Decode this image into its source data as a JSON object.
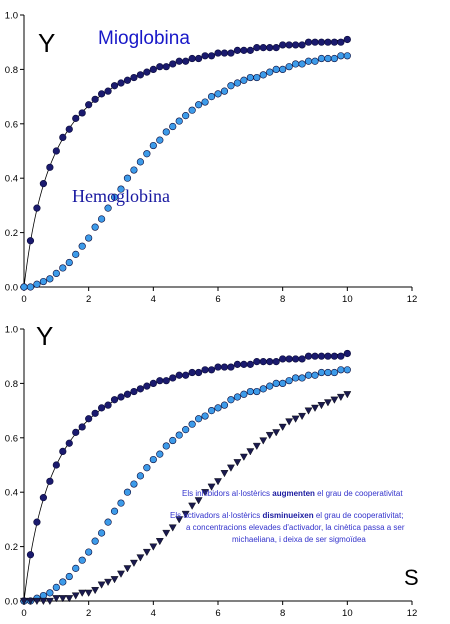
{
  "chart_data": [
    {
      "type": "scatter",
      "xlim": [
        0,
        12
      ],
      "ylim": [
        0,
        1.0
      ],
      "x_ticks": [
        "0",
        "2",
        "4",
        "6",
        "8",
        "10",
        "12"
      ],
      "y_ticks": [
        "0.0",
        "0.2",
        "0.4",
        "0.6",
        "0.8",
        "1.0"
      ],
      "ylabel": "Y",
      "xlabel": "",
      "grid": false,
      "x_step": 0.2,
      "x_max": 10,
      "series": [
        {
          "name": "Mioglobina",
          "marker": "circle",
          "color": "#1a1a6e",
          "fit_line": true,
          "model": {
            "p50": 1.0,
            "n": 1.0,
            "ymax": 1.0
          },
          "values": [
            0.0,
            0.17,
            0.29,
            0.38,
            0.44,
            0.5,
            0.55,
            0.58,
            0.62,
            0.64,
            0.67,
            0.69,
            0.71,
            0.72,
            0.74,
            0.75,
            0.76,
            0.77,
            0.78,
            0.79,
            0.8,
            0.81,
            0.81,
            0.82,
            0.83,
            0.83,
            0.84,
            0.84,
            0.85,
            0.85,
            0.86,
            0.86,
            0.86,
            0.87,
            0.87,
            0.87,
            0.88,
            0.88,
            0.88,
            0.88,
            0.89,
            0.89,
            0.89,
            0.89,
            0.9,
            0.9,
            0.9,
            0.9,
            0.9,
            0.9,
            0.91
          ]
        },
        {
          "name": "Hemoglobina",
          "marker": "circle",
          "color": "#3d9be9",
          "fit_line": false,
          "model": {
            "p50": 2.6,
            "n": 2.5,
            "ymax": 0.93
          },
          "values": [
            0.0,
            0.0,
            0.01,
            0.02,
            0.03,
            0.05,
            0.07,
            0.09,
            0.12,
            0.15,
            0.18,
            0.22,
            0.25,
            0.29,
            0.33,
            0.36,
            0.4,
            0.43,
            0.46,
            0.49,
            0.52,
            0.54,
            0.57,
            0.59,
            0.61,
            0.63,
            0.65,
            0.67,
            0.68,
            0.7,
            0.71,
            0.72,
            0.74,
            0.75,
            0.76,
            0.77,
            0.77,
            0.78,
            0.79,
            0.8,
            0.8,
            0.81,
            0.82,
            0.82,
            0.83,
            0.83,
            0.84,
            0.84,
            0.84,
            0.85,
            0.85
          ]
        }
      ],
      "annotations": {
        "ylabel": "Y",
        "mioglobina": "Mioglobina",
        "hemoglobina": "Hemoglobina"
      }
    },
    {
      "type": "scatter",
      "xlim": [
        0,
        12
      ],
      "ylim": [
        0,
        1.0
      ],
      "x_ticks": [
        "0",
        "2",
        "4",
        "6",
        "8",
        "10",
        "12"
      ],
      "y_ticks": [
        "0.0",
        "0.2",
        "0.4",
        "0.6",
        "0.8",
        "1.0"
      ],
      "ylabel": "Y",
      "xlabel": "S",
      "grid": false,
      "x_step": 0.2,
      "x_max": 10,
      "series": [
        {
          "name": "Mioglobina",
          "marker": "circle",
          "color": "#1a1a6e",
          "fit_line": true,
          "model": {
            "p50": 1.0,
            "n": 1.0,
            "ymax": 1.0
          },
          "values": [
            0.0,
            0.17,
            0.29,
            0.38,
            0.44,
            0.5,
            0.55,
            0.58,
            0.62,
            0.64,
            0.67,
            0.69,
            0.71,
            0.72,
            0.74,
            0.75,
            0.76,
            0.77,
            0.78,
            0.79,
            0.8,
            0.81,
            0.81,
            0.82,
            0.83,
            0.83,
            0.84,
            0.84,
            0.85,
            0.85,
            0.86,
            0.86,
            0.86,
            0.87,
            0.87,
            0.87,
            0.88,
            0.88,
            0.88,
            0.88,
            0.89,
            0.89,
            0.89,
            0.89,
            0.9,
            0.9,
            0.9,
            0.9,
            0.9,
            0.9,
            0.91
          ]
        },
        {
          "name": "Hemoglobina",
          "marker": "circle",
          "color": "#3d9be9",
          "fit_line": false,
          "model": {
            "p50": 2.6,
            "n": 2.5,
            "ymax": 0.93
          },
          "values": [
            0.0,
            0.0,
            0.01,
            0.02,
            0.03,
            0.05,
            0.07,
            0.09,
            0.12,
            0.15,
            0.18,
            0.22,
            0.25,
            0.29,
            0.33,
            0.36,
            0.4,
            0.43,
            0.46,
            0.49,
            0.52,
            0.54,
            0.57,
            0.59,
            0.61,
            0.63,
            0.65,
            0.67,
            0.68,
            0.7,
            0.71,
            0.72,
            0.74,
            0.75,
            0.76,
            0.77,
            0.77,
            0.78,
            0.79,
            0.8,
            0.8,
            0.81,
            0.82,
            0.82,
            0.83,
            0.83,
            0.84,
            0.84,
            0.84,
            0.85,
            0.85
          ]
        },
        {
          "name": "Inhibidor al·lostèric",
          "marker": "triangle-down",
          "color": "#1a1a4e",
          "fit_line": false,
          "model": {
            "p50": 4.9,
            "n": 2.8,
            "ymax": 0.95
          },
          "values": [
            0.0,
            0.0,
            0.0,
            0.0,
            0.0,
            0.01,
            0.01,
            0.01,
            0.02,
            0.03,
            0.03,
            0.04,
            0.06,
            0.07,
            0.08,
            0.1,
            0.12,
            0.14,
            0.16,
            0.18,
            0.2,
            0.22,
            0.25,
            0.27,
            0.3,
            0.32,
            0.35,
            0.37,
            0.4,
            0.42,
            0.44,
            0.47,
            0.49,
            0.51,
            0.53,
            0.55,
            0.57,
            0.59,
            0.61,
            0.62,
            0.64,
            0.66,
            0.67,
            0.68,
            0.7,
            0.71,
            0.72,
            0.73,
            0.74,
            0.75,
            0.76
          ]
        }
      ],
      "annotations": {
        "ylabel": "Y",
        "xlabel": "S",
        "note1_pre": "Els inhibidors al·lostèrics ",
        "note1_bold": "augmenten",
        "note1_post": " el grau de cooperativitat",
        "note2_pre": "Els activadors al·lostèrics ",
        "note2_bold": "disminueixen",
        "note2_post": " el grau de cooperativitat;",
        "note3": "a concentracions elevades d'activador,  la cinètica passa a ser",
        "note4": "michaeliana, i deixa de ser sigmoïdea"
      }
    }
  ]
}
